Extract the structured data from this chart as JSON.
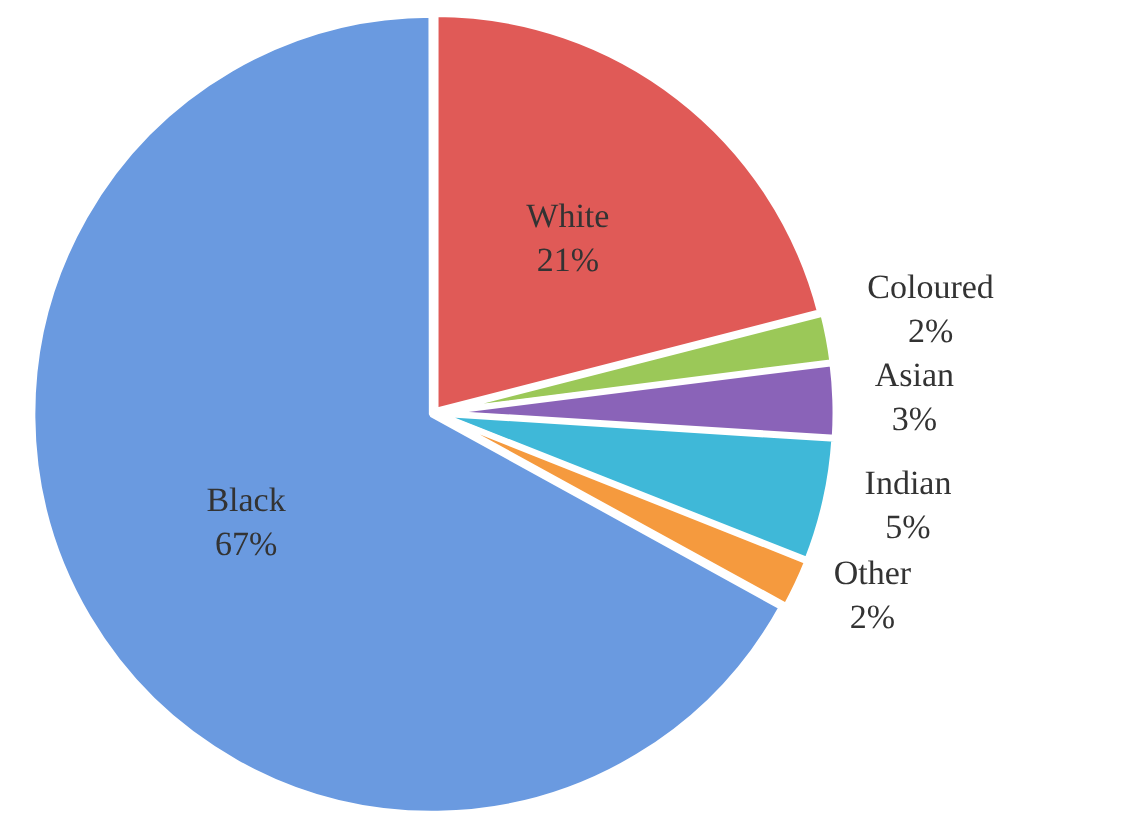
{
  "chart_data": {
    "type": "pie",
    "categories": [
      "White",
      "Coloured",
      "Asian",
      "Indian",
      "Other",
      "Black"
    ],
    "values": [
      21,
      2,
      3,
      5,
      2,
      67
    ],
    "colors": [
      "#e05a57",
      "#9bc858",
      "#8a63b8",
      "#3fb8d8",
      "#f59a3e",
      "#6a9ae0"
    ],
    "value_labels": [
      "21%",
      "2%",
      "3%",
      "5%",
      "2%",
      "67%"
    ],
    "legend": false
  }
}
